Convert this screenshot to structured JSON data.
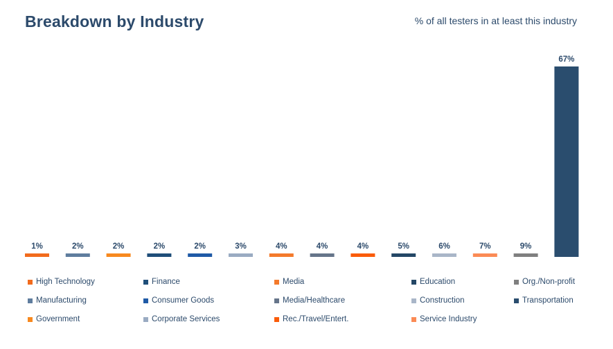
{
  "header": {
    "title": "Breakdown by Industry",
    "subtitle": "% of all testers in at least this industry"
  },
  "chart_data": {
    "type": "bar",
    "categories": [
      "High Technology",
      "Manufacturing",
      "Government",
      "Finance",
      "Consumer Goods",
      "Corporate Services",
      "Media",
      "Media/Healthcare",
      "Rec./Travel/Entert.",
      "Education",
      "Construction",
      "Service Industry",
      "Org./Non-profit",
      "Transportation"
    ],
    "values": [
      1,
      2,
      2,
      2,
      2,
      3,
      4,
      4,
      4,
      5,
      6,
      7,
      9,
      67
    ],
    "value_labels": [
      "1%",
      "2%",
      "2%",
      "2%",
      "2%",
      "3%",
      "4%",
      "4%",
      "4%",
      "5%",
      "6%",
      "7%",
      "9%",
      "67%"
    ],
    "colors": [
      "#f26b1d",
      "#5f7d9e",
      "#f7891f",
      "#1f4e79",
      "#1f5aa6",
      "#9aabc2",
      "#f47a2b",
      "#66758a",
      "#fa5c0a",
      "#244766",
      "#a9b6c8",
      "#fb8b55",
      "#7f7f7f",
      "#2a4d6e"
    ],
    "ylim": [
      0,
      67
    ],
    "grid": false,
    "legend_position": "bottom"
  },
  "legend": [
    {
      "label": "High Technology",
      "color": "#f26b1d"
    },
    {
      "label": "Finance",
      "color": "#1f4e79"
    },
    {
      "label": "Media",
      "color": "#f47a2b"
    },
    {
      "label": "Education",
      "color": "#244766"
    },
    {
      "label": "Org./Non-profit",
      "color": "#7f7f7f"
    },
    {
      "label": "Manufacturing",
      "color": "#5f7d9e"
    },
    {
      "label": "Consumer Goods",
      "color": "#1f5aa6"
    },
    {
      "label": "Media/Healthcare",
      "color": "#66758a"
    },
    {
      "label": "Construction",
      "color": "#a9b6c8"
    },
    {
      "label": "Transportation",
      "color": "#2a4d6e"
    },
    {
      "label": "Government",
      "color": "#f7891f"
    },
    {
      "label": "Corporate Services",
      "color": "#9aabc2"
    },
    {
      "label": "Rec./Travel/Entert.",
      "color": "#fa5c0a"
    },
    {
      "label": "Service Industry",
      "color": "#fb8b55"
    }
  ]
}
